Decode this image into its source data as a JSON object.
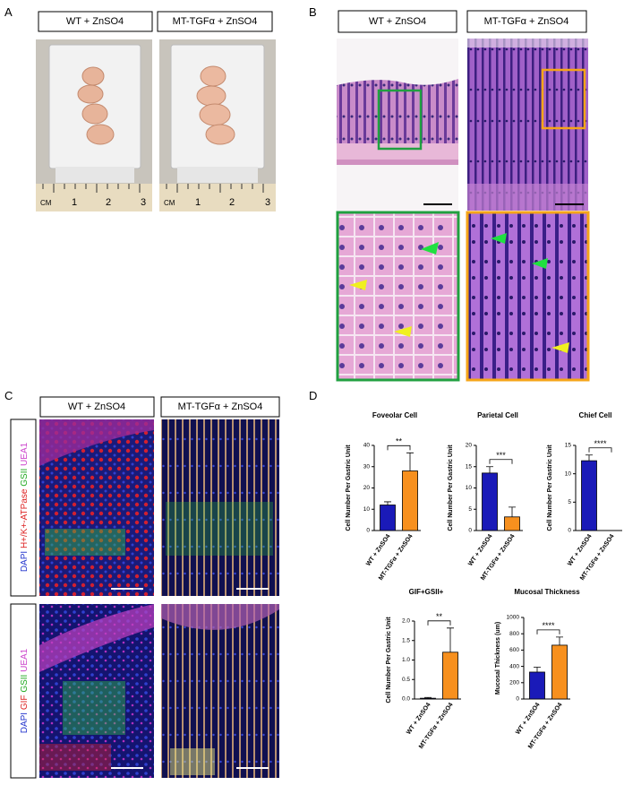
{
  "panels": {
    "A": {
      "label": "A",
      "headers": [
        "WT + ZnSO4",
        "MT-TGFα + ZnSO4"
      ],
      "ruler": [
        "CM",
        "1",
        "2",
        "3"
      ]
    },
    "B": {
      "label": "B",
      "headers": [
        "WT + ZnSO4",
        "MT-TGFα + ZnSO4"
      ]
    },
    "C": {
      "label": "C",
      "headers": [
        "WT + ZnSO4",
        "MT-TGFα + ZnSO4"
      ],
      "row_labels": [
        [
          "DAPI",
          "H+/K+-ATPase",
          "GSII",
          "UEA1"
        ],
        [
          "DAPI",
          "GIF",
          "GSII",
          "UEA1"
        ]
      ]
    },
    "D": {
      "label": "D"
    }
  },
  "chart_data": [
    {
      "type": "bar",
      "title": "Foveolar Cell",
      "y_label": "Cell Number Per Gastric Unit",
      "categories": [
        "WT + ZnSO4",
        "MT-TGFα + ZnSO4"
      ],
      "values": [
        12,
        28
      ],
      "errors": [
        1.5,
        8.5
      ],
      "colors": [
        "#1a1ab8",
        "#f7901e"
      ],
      "ylim": [
        0,
        40
      ],
      "yticks": [
        0,
        10,
        20,
        30,
        40
      ],
      "significance": "**"
    },
    {
      "type": "bar",
      "title": "Parietal Cell",
      "y_label": "Cell Number Per Gastric Unit",
      "categories": [
        "WT + ZnSO4",
        "MT-TGFα + ZnSO4"
      ],
      "values": [
        13.5,
        3.2
      ],
      "errors": [
        1.5,
        2.3
      ],
      "colors": [
        "#1a1ab8",
        "#f7901e"
      ],
      "ylim": [
        0,
        20
      ],
      "yticks": [
        0,
        5,
        10,
        15,
        20
      ],
      "significance": "***"
    },
    {
      "type": "bar",
      "title": "Chief Cell",
      "y_label": "Cell Number Per Gastric Unit",
      "categories": [
        "WT + ZnSO4",
        "MT-TGFα + ZnSO4"
      ],
      "values": [
        12.3,
        0
      ],
      "errors": [
        1,
        0
      ],
      "colors": [
        "#1a1ab8",
        "#f7901e"
      ],
      "ylim": [
        0,
        15
      ],
      "yticks": [
        0,
        5,
        10,
        15
      ],
      "significance": "****"
    },
    {
      "type": "bar",
      "title": "GIF+GSII+",
      "y_label": "Cell Number Per Gastric Unit",
      "categories": [
        "WT + ZnSO4",
        "MT-TGFα + ZnSO4"
      ],
      "values": [
        0.02,
        1.2
      ],
      "errors": [
        0.02,
        0.62
      ],
      "colors": [
        "#1a1ab8",
        "#f7901e"
      ],
      "ylim": [
        0,
        2
      ],
      "yticks": [
        {
          "value": 0,
          "label": "0.0"
        },
        {
          "value": 0.5,
          "label": "0.5"
        },
        {
          "value": 1,
          "label": "1.0"
        },
        {
          "value": 1.5,
          "label": "1.5"
        },
        {
          "value": 2,
          "label": "2.0"
        }
      ],
      "significance": "**"
    },
    {
      "type": "bar",
      "title": "Mucosal Thickness",
      "y_label": "Mucosal Thickness (um)",
      "categories": [
        "WT + ZnSO4",
        "MT-TGFα + ZnSO4"
      ],
      "values": [
        330,
        660
      ],
      "errors": [
        60,
        100
      ],
      "colors": [
        "#1a1ab8",
        "#f7901e"
      ],
      "ylim": [
        0,
        1000
      ],
      "yticks": [
        0,
        200,
        400,
        600,
        800,
        1000
      ],
      "significance": "****"
    }
  ]
}
